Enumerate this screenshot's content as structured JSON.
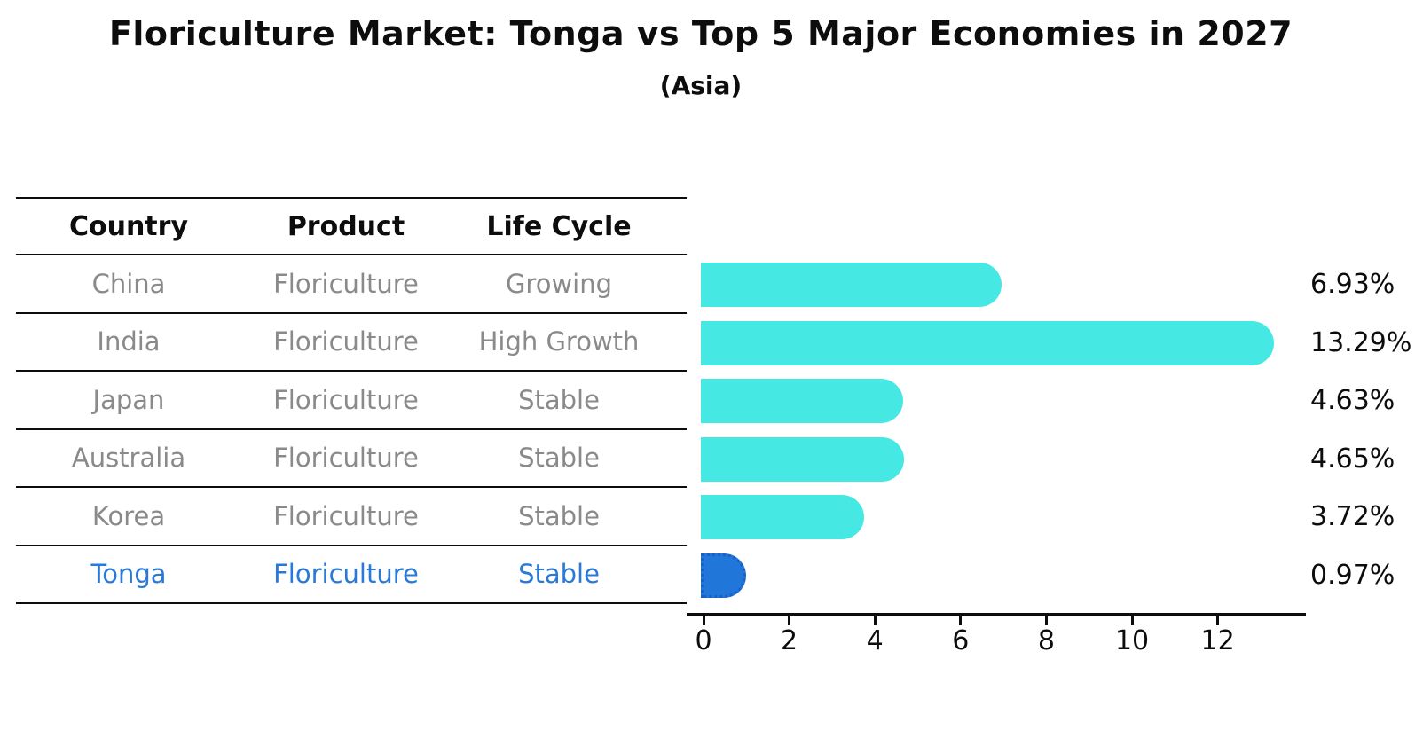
{
  "title": "Floriculture Market: Tonga vs Top 5 Major Economies in 2027",
  "subtitle": "(Asia)",
  "table": {
    "headers": {
      "country": "Country",
      "product": "Product",
      "life_cycle": "Life Cycle"
    },
    "rows": [
      {
        "country": "China",
        "product": "Floriculture",
        "life_cycle": "Growing",
        "highlight": false
      },
      {
        "country": "India",
        "product": "Floriculture",
        "life_cycle": "High Growth",
        "highlight": false
      },
      {
        "country": "Japan",
        "product": "Floriculture",
        "life_cycle": "Stable",
        "highlight": false
      },
      {
        "country": "Australia",
        "product": "Floriculture",
        "life_cycle": "Stable",
        "highlight": false
      },
      {
        "country": "Korea",
        "product": "Floriculture",
        "life_cycle": "Stable",
        "highlight": false
      },
      {
        "country": "Tonga",
        "product": "Floriculture",
        "life_cycle": "Stable",
        "highlight": true
      }
    ]
  },
  "chart_data": {
    "type": "bar",
    "orientation": "horizontal",
    "title": "Floriculture Market: Tonga vs Top 5 Major Economies in 2027",
    "subtitle": "(Asia)",
    "categories": [
      "China",
      "India",
      "Japan",
      "Australia",
      "Korea",
      "Tonga"
    ],
    "values": [
      6.93,
      13.29,
      4.63,
      4.65,
      3.72,
      0.97
    ],
    "value_labels": [
      "6.93%",
      "13.29%",
      "4.63%",
      "4.65%",
      "3.72%",
      "0.97%"
    ],
    "xlabel": "",
    "ylabel": "",
    "xlim": [
      0,
      14
    ],
    "xticks": [
      0,
      2,
      4,
      6,
      8,
      10,
      12
    ],
    "grid": false,
    "legend": "none",
    "bar_color": "#46e8e3",
    "highlight_color": "#2176d9",
    "highlight_index": 5
  },
  "colors": {
    "bar_cyan": "#46e8e3",
    "bar_blue": "#2176d9",
    "row_text_gray": "#8a8a8a",
    "highlight_text_blue": "#2979d9",
    "axis_black": "#0d0d0d"
  }
}
